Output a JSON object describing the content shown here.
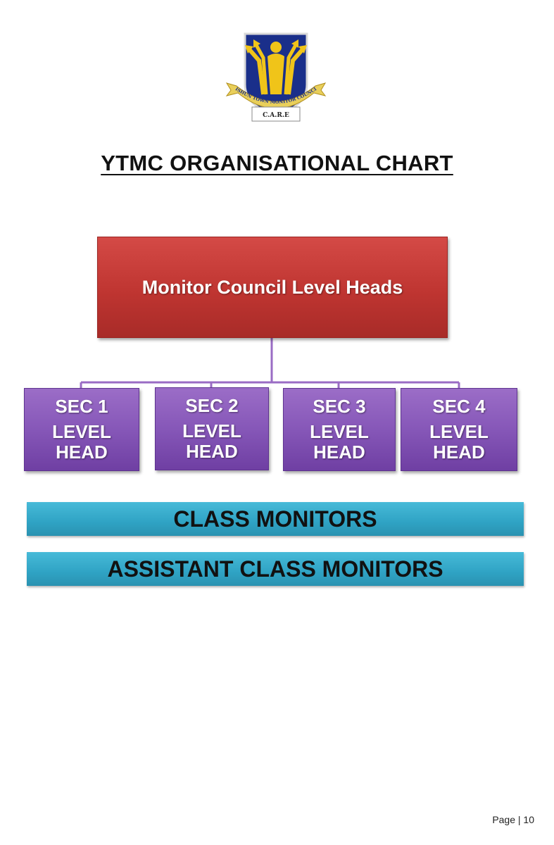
{
  "logo": {
    "ribbon_text": "YISHUN TOWN MONITOR COUNCIL",
    "motto": "C.A.R.E",
    "colors": {
      "shield": "#1a2f8a",
      "gold": "#f0c419",
      "ribbon": "#e9cf5a"
    }
  },
  "title": "YTMC ORGANISATIONAL CHART",
  "top_node": {
    "label": "Monitor Council Level Heads",
    "color": "#c0392b"
  },
  "level_heads": [
    {
      "line1": "SEC 1",
      "line2": "LEVEL HEAD"
    },
    {
      "line1": "SEC 2",
      "line2": "LEVEL HEAD"
    },
    {
      "line1": "SEC 3",
      "line2": "LEVEL HEAD"
    },
    {
      "line1": "SEC 4",
      "line2": "LEVEL HEAD"
    }
  ],
  "level_head_color": "#7e4fb3",
  "bands": [
    {
      "label": "CLASS MONITORS"
    },
    {
      "label": "ASSISTANT CLASS MONITORS"
    }
  ],
  "band_color": "#31a7c7",
  "connector_color": "#9a6cc4",
  "footer": {
    "page_label": "Page | 10"
  }
}
